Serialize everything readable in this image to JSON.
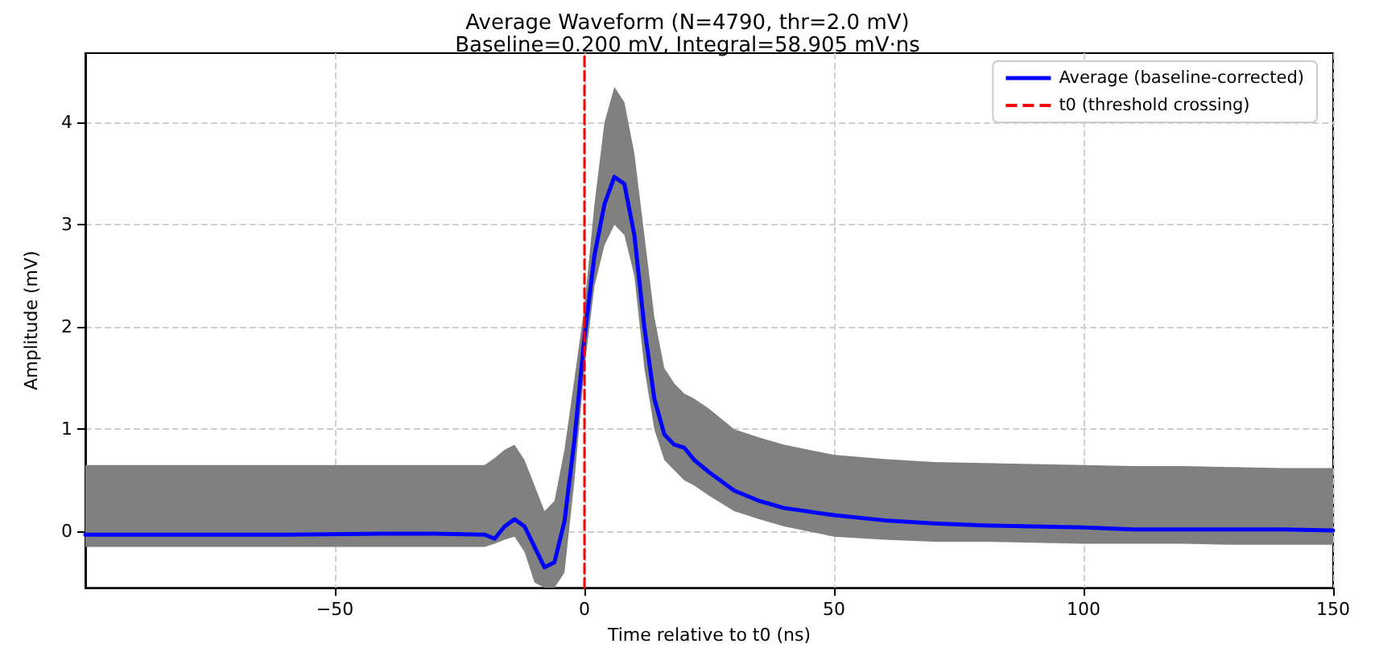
{
  "chart_data": {
    "type": "line",
    "title": "Average Waveform (N=4790, thr=2.0 mV)",
    "subtitle": "Baseline=0.200 mV, Integral=58.905 mV·ns",
    "xlabel": "Time relative to t0 (ns)",
    "ylabel": "Amplitude (mV)",
    "x": [
      -100,
      -80,
      -60,
      -40,
      -30,
      -20,
      -18,
      -16,
      -14,
      -12,
      -10,
      -8,
      -6,
      -4,
      -2,
      0,
      2,
      4,
      6,
      8,
      10,
      12,
      14,
      16,
      18,
      20,
      22,
      25,
      30,
      35,
      40,
      50,
      60,
      70,
      80,
      90,
      100,
      110,
      120,
      130,
      140,
      150
    ],
    "series": [
      {
        "name": "Average (baseline-corrected)",
        "color": "#0000ff",
        "values": [
          -0.03,
          -0.03,
          -0.03,
          -0.02,
          -0.02,
          -0.03,
          -0.07,
          0.05,
          0.12,
          0.05,
          -0.15,
          -0.35,
          -0.3,
          0.1,
          0.9,
          1.9,
          2.7,
          3.2,
          3.47,
          3.4,
          2.9,
          2.0,
          1.3,
          0.95,
          0.85,
          0.82,
          0.7,
          0.58,
          0.4,
          0.3,
          0.23,
          0.16,
          0.11,
          0.08,
          0.06,
          0.05,
          0.04,
          0.02,
          0.02,
          0.02,
          0.02,
          0.01
        ],
        "lower": [
          -0.15,
          -0.15,
          -0.15,
          -0.15,
          -0.15,
          -0.15,
          -0.12,
          -0.08,
          -0.05,
          -0.2,
          -0.5,
          -0.55,
          -0.55,
          -0.4,
          0.5,
          1.6,
          2.4,
          2.8,
          3.0,
          2.9,
          2.5,
          1.6,
          1.0,
          0.7,
          0.6,
          0.5,
          0.45,
          0.35,
          0.2,
          0.12,
          0.05,
          -0.05,
          -0.08,
          -0.1,
          -0.1,
          -0.11,
          -0.12,
          -0.12,
          -0.12,
          -0.13,
          -0.13,
          -0.13
        ],
        "upper": [
          0.65,
          0.65,
          0.65,
          0.65,
          0.65,
          0.65,
          0.72,
          0.8,
          0.85,
          0.7,
          0.45,
          0.2,
          0.3,
          0.8,
          1.5,
          2.2,
          3.2,
          4.0,
          4.35,
          4.2,
          3.7,
          2.9,
          2.1,
          1.6,
          1.45,
          1.35,
          1.3,
          1.2,
          1.0,
          0.92,
          0.85,
          0.75,
          0.71,
          0.68,
          0.67,
          0.66,
          0.65,
          0.64,
          0.64,
          0.63,
          0.62,
          0.62
        ]
      },
      {
        "name": "t0 (threshold crossing)",
        "color": "#ff0000",
        "x": [
          0,
          0
        ],
        "values": [
          -0.55,
          4.68
        ],
        "line_style": "dashed"
      }
    ],
    "xlim": [
      -100,
      150
    ],
    "xticks": [
      -50,
      0,
      50,
      100,
      150
    ],
    "ylim": [
      -0.55,
      4.68
    ],
    "yticks": [
      0,
      1,
      2,
      3,
      4
    ],
    "grid": true,
    "legend": "top right",
    "marker": "none",
    "line_style": "solid"
  }
}
